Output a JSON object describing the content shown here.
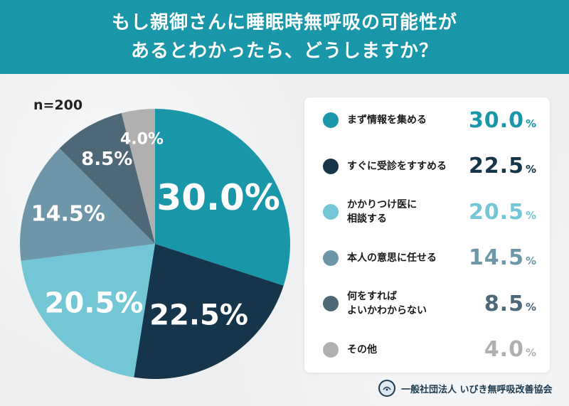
{
  "title": {
    "line1": "もし親御さんに睡眠時無呼吸の可能性が",
    "line2": "あるとわかったら、どうしますか？"
  },
  "sample_size": "n=200",
  "organization": "一般社団法人 いびき無呼吸改善協会",
  "chart_data": {
    "type": "pie",
    "title": "もし親御さんに睡眠時無呼吸の可能性があるとわかったら、どうしますか？",
    "unit": "%",
    "slices": [
      {
        "label": "まず情報を集める",
        "value": 30.0,
        "display": "30.0",
        "color": "#1996a8",
        "label_color": "#ffffff"
      },
      {
        "label": "すぐに受診をすすめる",
        "value": 22.5,
        "display": "22.5",
        "color": "#15354a",
        "label_color": "#ffffff"
      },
      {
        "label": "かかりつけ医に\n相談する",
        "value": 20.5,
        "display": "20.5",
        "color": "#72c6d5",
        "label_color": "#ffffff"
      },
      {
        "label": "本人の意思に任せる",
        "value": 14.5,
        "display": "14.5",
        "color": "#6d96a8",
        "label_color": "#ffffff"
      },
      {
        "label": "何をすれば\nよいかわからない",
        "value": 8.5,
        "display": "8.5",
        "color": "#4f6878",
        "label_color": "#ffffff"
      },
      {
        "label": "その他",
        "value": 4.0,
        "display": "4.0",
        "color": "#b0b0b0",
        "label_color": "#ffffff"
      }
    ],
    "legend_position": "right"
  }
}
